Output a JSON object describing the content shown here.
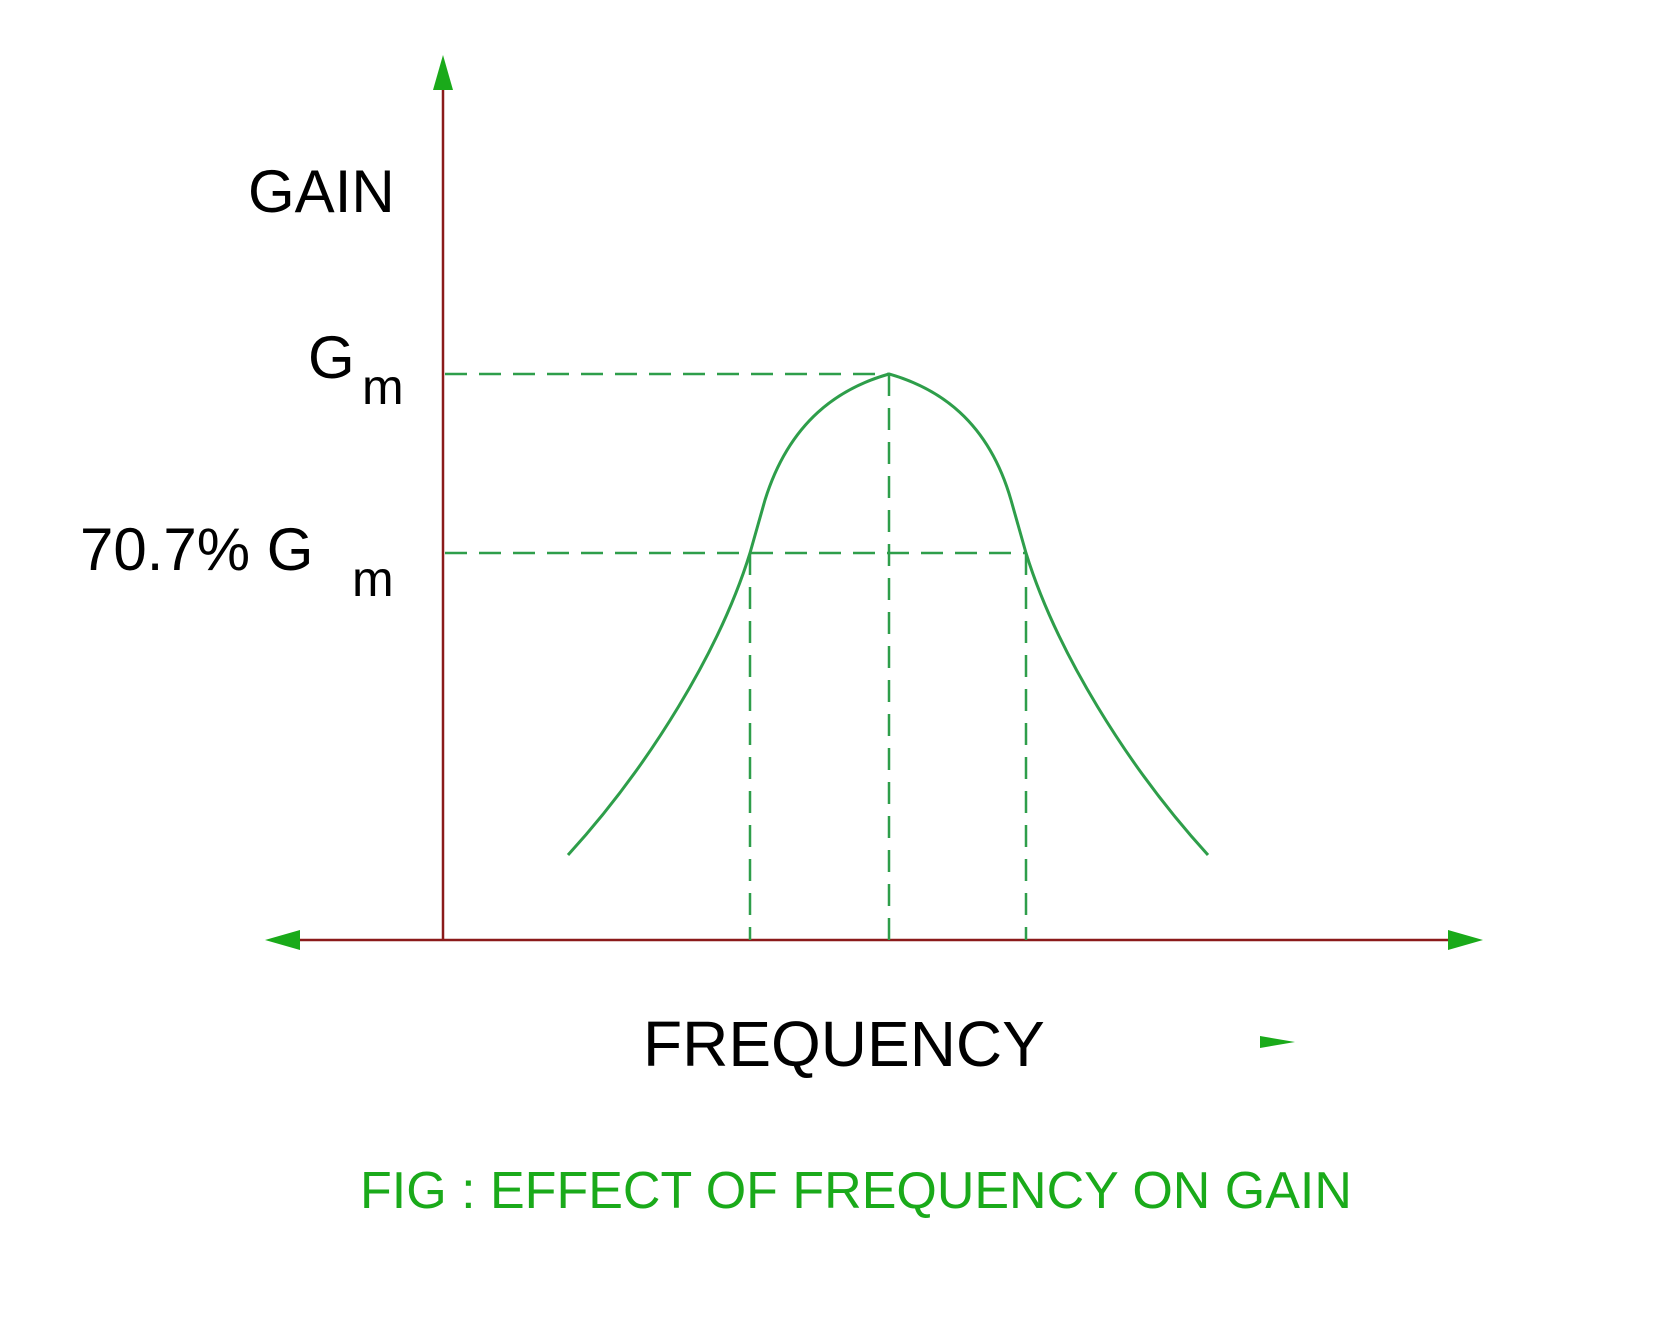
{
  "labels": {
    "y_axis": "GAIN",
    "x_axis": "FREQUENCY",
    "peak": {
      "main": "G",
      "sub": "m"
    },
    "half_power": {
      "main": "70.7% G",
      "sub": "m"
    }
  },
  "caption": "FIG : EFFECT OF FREQUENCY ON GAIN",
  "colors": {
    "axis": "#8b1a1a",
    "arrow": "#1aaa1a",
    "curve": "#2e9e4a",
    "guide": "#2e9e4a",
    "text": "#000000",
    "caption": "#1aaa1a"
  }
}
